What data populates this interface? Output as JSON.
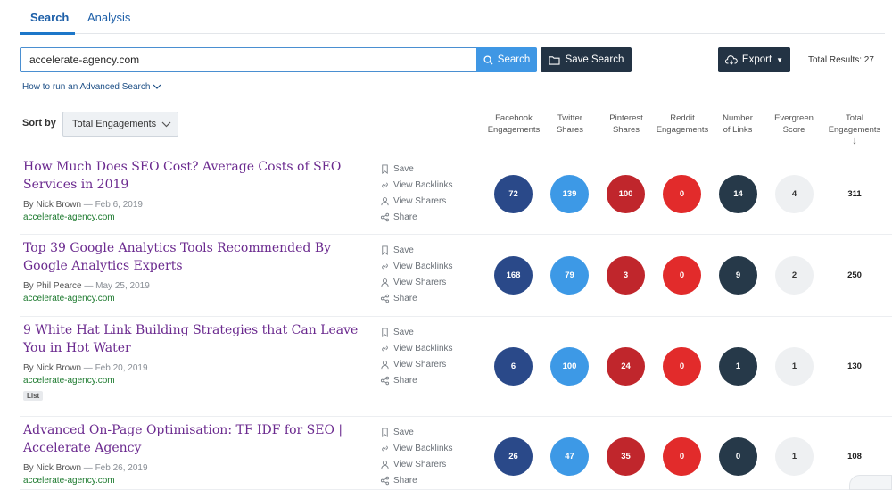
{
  "tabs": [
    {
      "label": "Search"
    },
    {
      "label": "Analysis"
    }
  ],
  "search": {
    "value": "accelerate-agency.com",
    "button_label": "Search"
  },
  "toolbar": {
    "save_search_label": "Save Search",
    "export_label": "Export",
    "total_results": "Total Results: 27"
  },
  "advanced_link": "How to run an Advanced Search",
  "sort": {
    "label": "Sort by",
    "selected": "Total Engagements"
  },
  "columns": [
    {
      "line1": "Facebook",
      "line2": "Engagements"
    },
    {
      "line1": "Twitter",
      "line2": "Shares"
    },
    {
      "line1": "Pinterest",
      "line2": "Shares"
    },
    {
      "line1": "Reddit",
      "line2": "Engagements"
    },
    {
      "line1": "Number",
      "line2": "of Links"
    },
    {
      "line1": "Evergreen",
      "line2": "Score"
    },
    {
      "line1": "Total",
      "line2": "Engagements",
      "line3": "↓"
    }
  ],
  "actions": [
    "Save",
    "View Backlinks",
    "View Sharers",
    "Share"
  ],
  "results": [
    {
      "title": "How Much Does SEO Cost? Average Costs of SEO Services in 2019",
      "author": "By Nick Brown",
      "date": "— Feb 6, 2019",
      "domain": "accelerate-agency.com",
      "badge": "",
      "facebook": "72",
      "twitter": "139",
      "pinterest": "100",
      "reddit": "0",
      "links": "14",
      "evergreen": "4",
      "total": "311"
    },
    {
      "title": "Top 39 Google Analytics Tools Recommended By Google Analytics Experts",
      "author": "By Phil Pearce",
      "date": "— May 25, 2019",
      "domain": "accelerate-agency.com",
      "badge": "",
      "facebook": "168",
      "twitter": "79",
      "pinterest": "3",
      "reddit": "0",
      "links": "9",
      "evergreen": "2",
      "total": "250"
    },
    {
      "title": "9 White Hat Link Building Strategies that Can Leave You in Hot Water",
      "author": "By Nick Brown",
      "date": "— Feb 20, 2019",
      "domain": "accelerate-agency.com",
      "badge": "List",
      "facebook": "6",
      "twitter": "100",
      "pinterest": "24",
      "reddit": "0",
      "links": "1",
      "evergreen": "1",
      "total": "130"
    },
    {
      "title": "Advanced On-Page Optimisation: TF IDF for SEO | Accelerate Agency",
      "author": "By Nick Brown",
      "date": "— Feb 26, 2019",
      "domain": "accelerate-agency.com",
      "badge": "",
      "facebook": "26",
      "twitter": "47",
      "pinterest": "35",
      "reddit": "0",
      "links": "0",
      "evergreen": "1",
      "total": "108"
    }
  ],
  "colors": {
    "facebook": "#2a4989",
    "twitter": "#3d99e6",
    "pinterest": "#c0262c",
    "reddit": "#e22b2b",
    "links": "#263949",
    "evergreen": "#eef0f2",
    "title": "#6b2a8f",
    "domain": "#1d7a2f"
  }
}
